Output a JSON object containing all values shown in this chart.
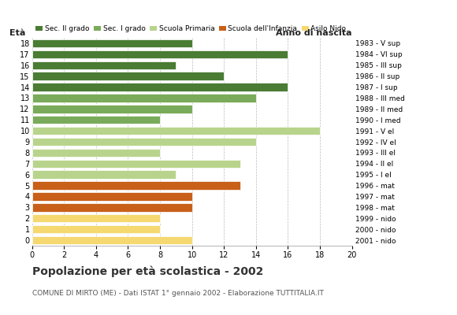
{
  "ages": [
    18,
    17,
    16,
    15,
    14,
    13,
    12,
    11,
    10,
    9,
    8,
    7,
    6,
    5,
    4,
    3,
    2,
    1,
    0
  ],
  "values": [
    10,
    16,
    9,
    12,
    16,
    14,
    10,
    8,
    18,
    14,
    8,
    13,
    9,
    13,
    10,
    10,
    8,
    8,
    10
  ],
  "anno_nascita": [
    "1983 - V sup",
    "1984 - VI sup",
    "1985 - III sup",
    "1986 - II sup",
    "1987 - I sup",
    "1988 - III med",
    "1989 - II med",
    "1990 - I med",
    "1991 - V el",
    "1992 - IV el",
    "1993 - III el",
    "1994 - II el",
    "1995 - I el",
    "1996 - mat",
    "1997 - mat",
    "1998 - mat",
    "1999 - nido",
    "2000 - nido",
    "2001 - nido"
  ],
  "bar_colors": [
    "#4a7c34",
    "#4a7c34",
    "#4a7c34",
    "#4a7c34",
    "#4a7c34",
    "#7aab5a",
    "#7aab5a",
    "#7aab5a",
    "#b8d48c",
    "#b8d48c",
    "#b8d48c",
    "#b8d48c",
    "#b8d48c",
    "#c8601a",
    "#c8601a",
    "#c8601a",
    "#f5d870",
    "#f5d870",
    "#f5d870"
  ],
  "legend_labels": [
    "Sec. II grado",
    "Sec. I grado",
    "Scuola Primaria",
    "Scuola dell'Infanzia",
    "Asilo Nido"
  ],
  "legend_colors": [
    "#4a7c34",
    "#7aab5a",
    "#b8d48c",
    "#c8601a",
    "#f5d870"
  ],
  "title": "Popolazione per età scolastica - 2002",
  "subtitle": "COMUNE DI MIRTO (ME) - Dati ISTAT 1° gennaio 2002 - Elaborazione TUTTITALIA.IT",
  "ylabel_eta": "Età",
  "ylabel_anno": "Anno di nascita",
  "xlim": [
    0,
    20
  ],
  "xticks": [
    0,
    2,
    4,
    6,
    8,
    10,
    12,
    14,
    16,
    18,
    20
  ],
  "grid_color": "#aaaaaa",
  "bg_color": "#ffffff"
}
